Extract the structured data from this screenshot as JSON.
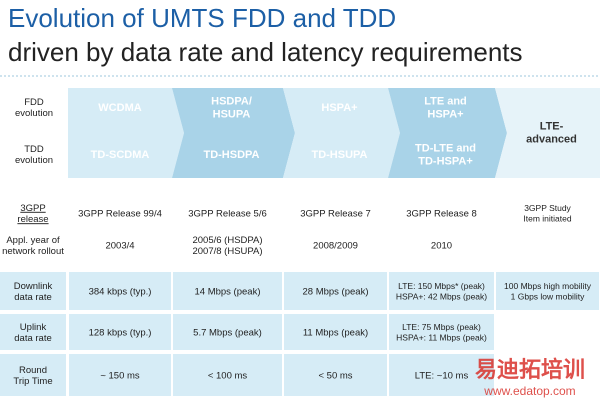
{
  "title": {
    "line1": "Evolution of UMTS FDD and TDD",
    "line2": "driven by data rate and latency requirements"
  },
  "evolution": {
    "row_labels": [
      [
        "FDD",
        "evolution"
      ],
      [
        "TDD",
        "evolution"
      ]
    ],
    "stages": [
      {
        "fdd": [
          "WCDMA"
        ],
        "tdd": [
          "TD-SCDMA"
        ]
      },
      {
        "fdd": [
          "HSDPA/",
          "HSUPA"
        ],
        "tdd": [
          "TD-HSDPA"
        ]
      },
      {
        "fdd": [
          "HSPA+"
        ],
        "tdd": [
          "TD-HSUPA"
        ]
      },
      {
        "fdd": [
          "LTE and",
          "HSPA+"
        ],
        "tdd": [
          "TD-LTE and",
          "TD-HSPA+"
        ]
      },
      {
        "fdd": [
          "LTE-",
          "advanced"
        ]
      }
    ]
  },
  "table": {
    "rows": [
      {
        "label": [
          "3GPP",
          "release"
        ],
        "cells": [
          [
            "3GPP Release 99/4"
          ],
          [
            "3GPP Release 5/6"
          ],
          [
            "3GPP Release 7"
          ],
          [
            "3GPP Release 8"
          ],
          [
            "3GPP Study",
            "Item initiated"
          ]
        ]
      },
      {
        "label": [
          "Appl. year of",
          "network rollout"
        ],
        "cells": [
          [
            "2003/4"
          ],
          [
            "2005/6 (HSDPA)",
            "2007/8 (HSUPA)"
          ],
          [
            "2008/2009"
          ],
          [
            "2010"
          ]
        ]
      },
      {
        "label": [
          "Downlink",
          "data rate"
        ],
        "cells": [
          [
            "384 kbps (typ.)"
          ],
          [
            "14 Mbps (peak)"
          ],
          [
            "28 Mbps (peak)"
          ],
          [
            "LTE: 150 Mbps* (peak)",
            "HSPA+: 42 Mbps (peak)"
          ],
          [
            "100 Mbps high mobility",
            "1 Gbps low mobility"
          ]
        ]
      },
      {
        "label": [
          "Uplink",
          "data rate"
        ],
        "cells": [
          [
            "128 kbps (typ.)"
          ],
          [
            "5.7 Mbps (peak)"
          ],
          [
            "11 Mbps (peak)"
          ],
          [
            "LTE: 75 Mbps (peak)",
            "HSPA+: 11 Mbps (peak)"
          ]
        ]
      },
      {
        "label": [
          "Round",
          "Trip Time"
        ],
        "cells": [
          [
            "~ 150 ms"
          ],
          [
            "< 100 ms"
          ],
          [
            "< 50 ms"
          ],
          [
            "LTE: ~10 ms"
          ]
        ]
      }
    ]
  },
  "watermark": {
    "brand": "易迪拓培训",
    "url": "www.edatop.com"
  }
}
